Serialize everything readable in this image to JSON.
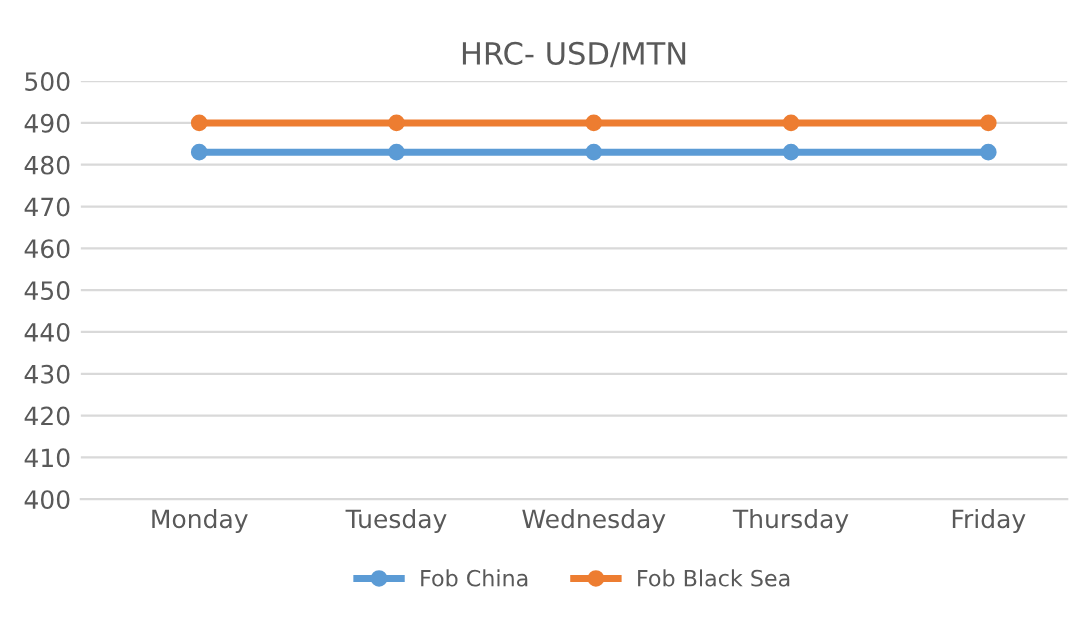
{
  "chart_data": {
    "type": "line",
    "title": "HRC- USD/MTN",
    "categories": [
      "Monday",
      "Tuesday",
      "Wednesday",
      "Thursday",
      "Friday"
    ],
    "series": [
      {
        "name": "Fob China",
        "color": "#5b9bd5",
        "values": [
          483,
          483,
          483,
          483,
          483
        ]
      },
      {
        "name": "Fob Black Sea",
        "color": "#ed7d31",
        "values": [
          490,
          490,
          490,
          490,
          490
        ]
      }
    ],
    "ylim": [
      400,
      500
    ],
    "yticks": [
      400,
      410,
      420,
      430,
      440,
      450,
      460,
      470,
      480,
      490,
      500
    ],
    "grid": "y",
    "legend": "bottom",
    "marker": "circle",
    "line_style": "solid"
  }
}
